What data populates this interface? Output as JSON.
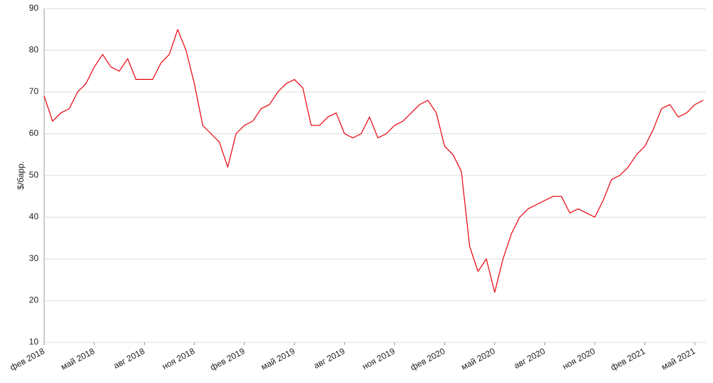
{
  "chart_data": {
    "type": "line",
    "y_label": "$/барр.",
    "categories": [
      "фев 2018",
      null,
      null,
      null,
      null,
      null,
      "май 2018",
      null,
      null,
      null,
      null,
      null,
      "авг 2018",
      null,
      null,
      null,
      null,
      null,
      "ноя 2018",
      null,
      null,
      null,
      null,
      null,
      "фев 2019",
      null,
      null,
      null,
      null,
      null,
      "май 2019",
      null,
      null,
      null,
      null,
      null,
      "авг 2019",
      null,
      null,
      null,
      null,
      null,
      "ноя 2019",
      null,
      null,
      null,
      null,
      null,
      "фев 2020",
      null,
      null,
      null,
      null,
      null,
      "май 2020",
      null,
      null,
      null,
      null,
      null,
      "авг 2020",
      null,
      null,
      null,
      null,
      null,
      "ноя 2020",
      null,
      null,
      null,
      null,
      null,
      "фев 2021",
      null,
      null,
      null,
      null,
      null,
      "май 2021",
      null
    ],
    "series": [
      {
        "color": "#e8000b",
        "values": [
          69,
          63,
          65,
          66,
          70,
          72,
          76,
          79,
          76,
          75,
          78,
          73,
          73,
          73,
          77,
          79,
          85,
          80,
          72,
          62,
          60,
          58,
          52,
          60,
          62,
          63,
          66,
          67,
          70,
          72,
          73,
          71,
          62,
          62,
          64,
          65,
          60,
          59,
          60,
          64,
          59,
          60,
          62,
          63,
          65,
          67,
          68,
          65,
          57,
          55,
          51,
          33,
          27,
          30,
          22,
          30,
          36,
          40,
          42,
          43,
          44,
          45,
          45,
          41,
          42,
          41,
          40,
          44,
          49,
          50,
          52,
          55,
          57,
          61,
          66,
          67,
          64,
          65,
          67,
          68
        ]
      }
    ],
    "ylim": [
      10,
      90
    ],
    "yticks": [
      10,
      20,
      30,
      40,
      50,
      60,
      70,
      80,
      90
    ],
    "grid": true
  }
}
